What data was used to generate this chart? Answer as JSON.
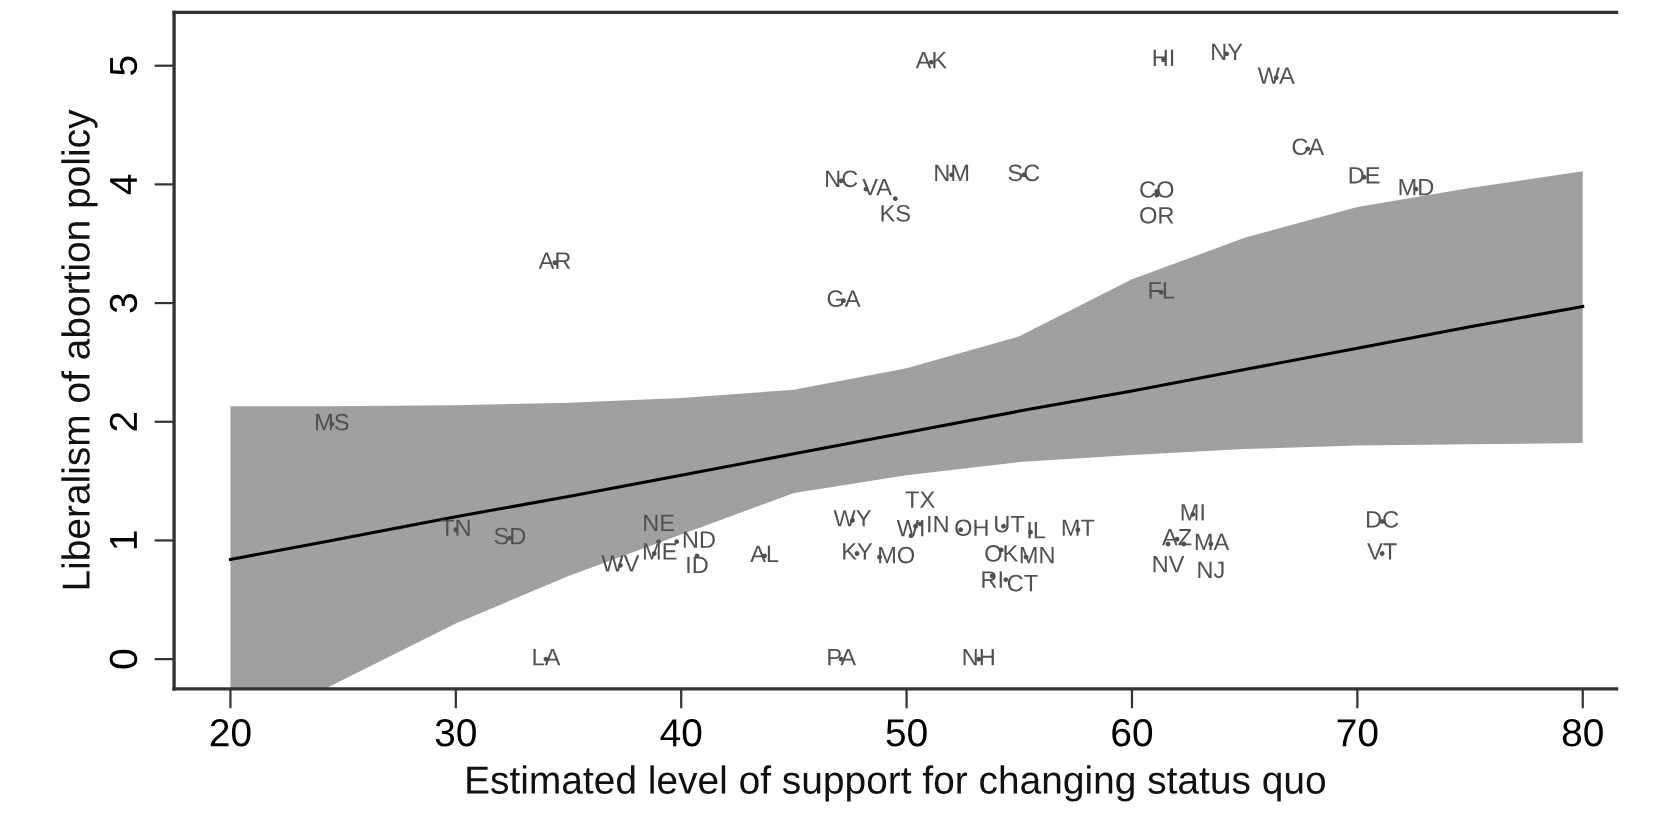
{
  "chart_data": {
    "type": "scatter",
    "xlabel": "Estimated level of support for changing status quo",
    "ylabel": "Liberalism of abortion policy",
    "xlim": [
      17.5,
      81.5
    ],
    "ylim": [
      -0.25,
      5.45
    ],
    "xticks": [
      20,
      30,
      40,
      50,
      60,
      70,
      80
    ],
    "yticks": [
      0,
      1,
      2,
      3,
      4,
      5
    ],
    "grid": false,
    "legend": false,
    "series": [
      {
        "type": "line",
        "color": "#000000",
        "marker": "none",
        "x": [
          20,
          24.2,
          30,
          35,
          40,
          45,
          50,
          55,
          60,
          65,
          70,
          75,
          80
        ],
        "values": [
          0.84,
          0.99,
          1.2,
          1.37,
          1.55,
          1.73,
          1.91,
          2.09,
          2.26,
          2.44,
          2.62,
          2.8,
          2.97
        ],
        "lower": [
          -0.25,
          -0.25,
          0.3,
          0.7,
          1.05,
          1.4,
          1.55,
          1.66,
          1.72,
          1.77,
          1.8,
          1.81,
          1.82
        ],
        "upper": [
          2.13,
          2.13,
          2.14,
          2.16,
          2.2,
          2.27,
          2.45,
          2.72,
          3.2,
          3.55,
          3.81,
          3.97,
          4.11
        ]
      },
      {
        "color": "#505050",
        "marker": "circle",
        "x": [
          51.1,
          61.4,
          64.2,
          66.4,
          67.8,
          70.3,
          72.6,
          47.1,
          48.2,
          49.5,
          52.0,
          55.2,
          61.1,
          61.1,
          34.4,
          47.2,
          61.3,
          24.5,
          30.0,
          32.4,
          37.3,
          38.8,
          39.0,
          39.8,
          40.7,
          43.7,
          34.0,
          47.1,
          53.2,
          47.6,
          47.8,
          48.8,
          50.2,
          50.6,
          50.4,
          52.4,
          54.3,
          54.2,
          55.5,
          57.6,
          55.3,
          53.8,
          54.4,
          62.7,
          62.0,
          61.6,
          62.3,
          63.5,
          71.1,
          71.1
        ],
        "values": [
          5.03,
          5.05,
          5.1,
          4.9,
          4.3,
          4.06,
          3.96,
          4.03,
          3.96,
          3.88,
          4.08,
          4.08,
          3.94,
          3.91,
          3.34,
          3.02,
          3.09,
          1.98,
          1.09,
          1.02,
          0.79,
          0.89,
          0.99,
          0.99,
          0.87,
          0.87,
          0,
          0,
          0,
          1.17,
          0.89,
          0.86,
          1.04,
          1.14,
          1.12,
          1.09,
          1.12,
          0.92,
          1.07,
          1.09,
          0.86,
          0.7,
          0.67,
          1.22,
          1.01,
          0.97,
          0.97,
          0.97,
          1.16,
          0.89
        ],
        "value_labels": [
          "AK",
          "HI",
          "NY",
          "WA",
          "CA",
          "DE",
          "MD",
          "NC",
          "VA",
          "KS",
          "NM",
          "SC",
          "CO",
          "OR",
          "AR",
          "GA",
          "FL",
          "MS",
          "TN",
          "SD",
          "WV",
          "ME",
          "NE",
          "ND",
          "ID",
          "AL",
          "LA",
          "PA",
          "NH",
          "WY",
          "KY",
          "MO",
          "WI",
          "TX",
          "IN",
          "OH",
          "UT",
          "OK",
          "IL",
          "MT",
          "MN",
          "RI",
          "CT",
          "MI",
          "AZ",
          "NV",
          "MA",
          "NJ",
          "DC",
          "VT"
        ]
      }
    ]
  }
}
